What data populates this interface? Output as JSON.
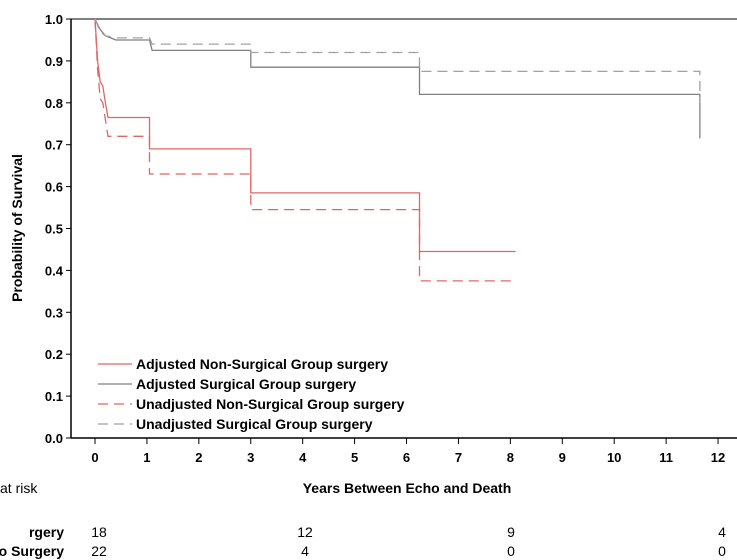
{
  "chart_data": {
    "type": "line",
    "step": true,
    "xlabel": "Years Between Echo and Death",
    "ylabel": "Probability of Survival",
    "xlim": [
      0,
      12
    ],
    "ylim": [
      0,
      1
    ],
    "x_ticks": [
      "0",
      "1",
      "2",
      "3",
      "4",
      "5",
      "6",
      "7",
      "8",
      "9",
      "10",
      "11",
      "12"
    ],
    "y_ticks": [
      "0.0",
      "0.1",
      "0.2",
      "0.3",
      "0.4",
      "0.5",
      "0.6",
      "0.7",
      "0.8",
      "0.9",
      "1.0"
    ],
    "legend_position": "bottom-left",
    "series": [
      {
        "name": "Adjusted Non-Surgical Group surgery",
        "color": "#e06666",
        "dash": "solid",
        "points": [
          [
            0,
            1.0
          ],
          [
            0.05,
            0.9
          ],
          [
            0.1,
            0.85
          ],
          [
            0.15,
            0.84
          ],
          [
            0.2,
            0.8
          ],
          [
            0.25,
            0.765
          ],
          [
            1.05,
            0.765
          ],
          [
            1.05,
            0.69
          ],
          [
            3.0,
            0.69
          ],
          [
            3.0,
            0.585
          ],
          [
            6.25,
            0.585
          ],
          [
            6.25,
            0.445
          ],
          [
            8.1,
            0.445
          ]
        ]
      },
      {
        "name": "Adjusted Surgical Group surgery",
        "color": "#808080",
        "dash": "solid",
        "points": [
          [
            0,
            1.0
          ],
          [
            0.1,
            0.975
          ],
          [
            0.2,
            0.96
          ],
          [
            0.3,
            0.955
          ],
          [
            0.4,
            0.95
          ],
          [
            1.05,
            0.95
          ],
          [
            1.1,
            0.925
          ],
          [
            3.0,
            0.925
          ],
          [
            3.0,
            0.885
          ],
          [
            6.25,
            0.885
          ],
          [
            6.25,
            0.82
          ],
          [
            11.65,
            0.82
          ],
          [
            11.65,
            0.715
          ]
        ]
      },
      {
        "name": "Unadjusted Non-Surgical Group surgery",
        "color": "#e06666",
        "dash": "dashed",
        "points": [
          [
            0,
            1.0
          ],
          [
            0.05,
            0.88
          ],
          [
            0.1,
            0.81
          ],
          [
            0.15,
            0.8
          ],
          [
            0.2,
            0.76
          ],
          [
            0.25,
            0.72
          ],
          [
            1.05,
            0.72
          ],
          [
            1.05,
            0.63
          ],
          [
            3.0,
            0.63
          ],
          [
            3.0,
            0.545
          ],
          [
            6.25,
            0.545
          ],
          [
            6.25,
            0.375
          ],
          [
            8.1,
            0.375
          ]
        ]
      },
      {
        "name": "Unadjusted Surgical Group surgery",
        "color": "#a0a0a0",
        "dash": "dashed",
        "points": [
          [
            0,
            1.0
          ],
          [
            0.1,
            0.97
          ],
          [
            0.2,
            0.96
          ],
          [
            0.4,
            0.955
          ],
          [
            1.05,
            0.955
          ],
          [
            1.1,
            0.94
          ],
          [
            3.0,
            0.94
          ],
          [
            3.0,
            0.92
          ],
          [
            6.25,
            0.92
          ],
          [
            6.25,
            0.875
          ],
          [
            11.65,
            0.875
          ],
          [
            11.65,
            0.8
          ]
        ]
      }
    ]
  },
  "risk_table": {
    "title": "at risk",
    "rows": [
      {
        "label": "rgery",
        "values": [
          "18",
          "12",
          "9",
          "4"
        ]
      },
      {
        "label": "o Surgery",
        "values": [
          "22",
          "4",
          "0",
          "0"
        ]
      }
    ]
  }
}
